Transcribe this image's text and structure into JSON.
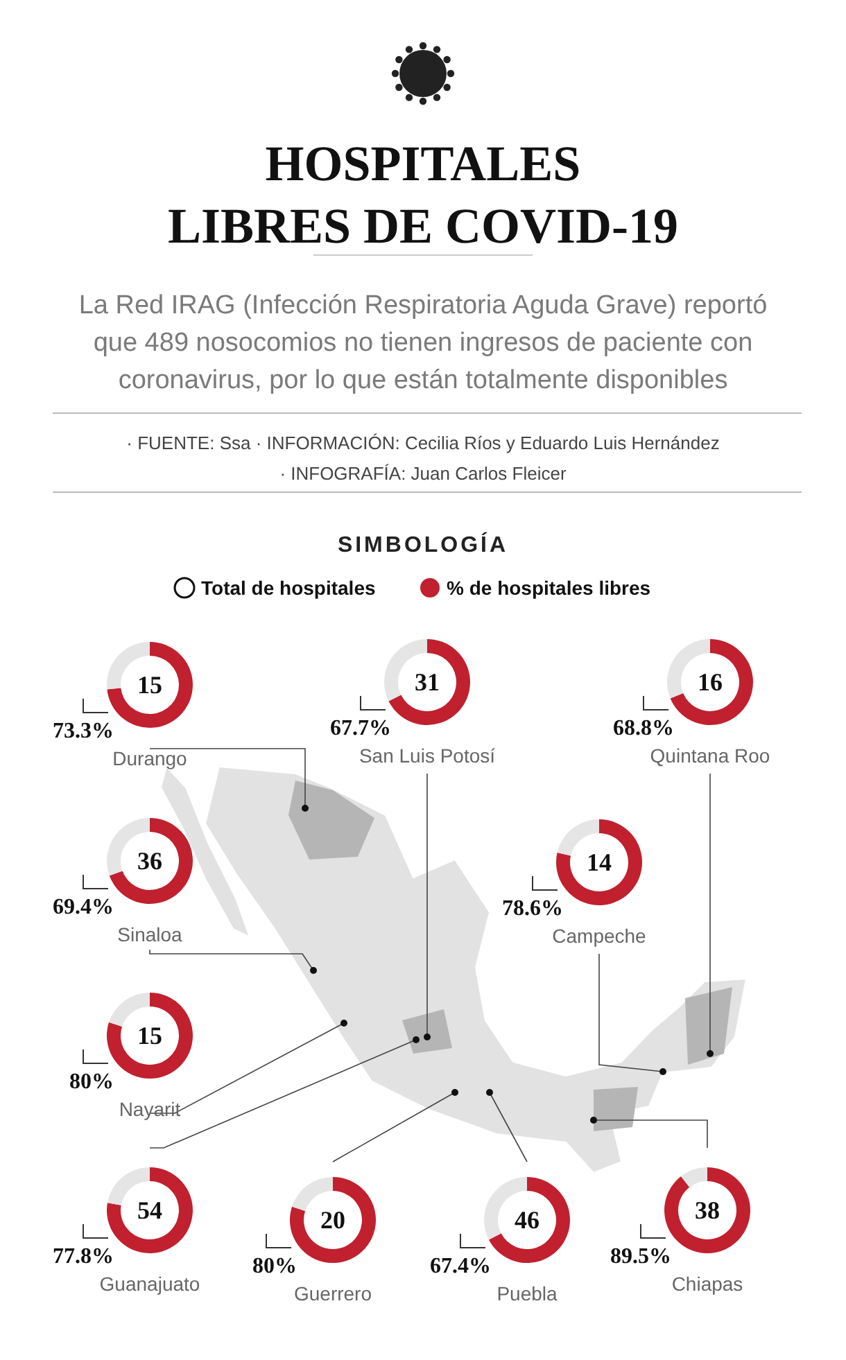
{
  "chart_data": [
    {
      "type": "other",
      "title": "HOSPITALES\nLIBRES DE COVID-19",
      "subtitle": "La Red IRAG (Infección Respiratoria Aguda Grave) reportó\nque 489 nosocomios no tienen ingresos de paciente con\ncoronavirus, por lo que están totalmente disponibles",
      "annotations": [
        "· FUENTE: Ssa · INFORMACIÓN: Cecilia Ríos y Eduardo Luis Hernández",
        "· INFOGRAFÍA: Juan Carlos Fleicer",
        "SIMBOLOGÍA",
        "Total de hospitales",
        "% de hospitales libres"
      ]
    },
    {
      "type": "donut",
      "title": "Durango",
      "categories": [
        null,
        null
      ],
      "values": [
        73.3,
        26.7
      ],
      "colors": [
        "#c1202f",
        "#e5e5e5"
      ],
      "value_labels": [
        "73.3%",
        null
      ],
      "annotations": [
        "15"
      ]
    },
    {
      "type": "donut",
      "title": "San Luis Potosí",
      "categories": [
        null,
        null
      ],
      "values": [
        67.7,
        32.3
      ],
      "colors": [
        "#c1202f",
        "#e5e5e5"
      ],
      "value_labels": [
        "67.7%",
        null
      ],
      "annotations": [
        "31"
      ]
    },
    {
      "type": "donut",
      "title": "Quintana Roo",
      "categories": [
        null,
        null
      ],
      "values": [
        68.8,
        31.2
      ],
      "colors": [
        "#c1202f",
        "#e5e5e5"
      ],
      "value_labels": [
        "68.8%",
        null
      ],
      "annotations": [
        "16"
      ]
    },
    {
      "type": "donut",
      "title": "Sinaloa",
      "categories": [
        null,
        null
      ],
      "values": [
        69.4,
        30.6
      ],
      "colors": [
        "#c1202f",
        "#e5e5e5"
      ],
      "value_labels": [
        "69.4%",
        null
      ],
      "annotations": [
        "36"
      ]
    },
    {
      "type": "donut",
      "title": "Campeche",
      "categories": [
        null,
        null
      ],
      "values": [
        78.6,
        21.4
      ],
      "colors": [
        "#c1202f",
        "#e5e5e5"
      ],
      "value_labels": [
        "78.6%",
        null
      ],
      "annotations": [
        "14"
      ]
    },
    {
      "type": "donut",
      "title": "Nayarit",
      "categories": [
        null,
        null
      ],
      "values": [
        80,
        20
      ],
      "colors": [
        "#c1202f",
        "#e5e5e5"
      ],
      "value_labels": [
        "80%",
        null
      ],
      "annotations": [
        "15"
      ]
    },
    {
      "type": "donut",
      "title": "Guanajuato",
      "categories": [
        null,
        null
      ],
      "values": [
        77.8,
        22.2
      ],
      "colors": [
        "#c1202f",
        "#e5e5e5"
      ],
      "value_labels": [
        "77.8%",
        null
      ],
      "annotations": [
        "54"
      ]
    },
    {
      "type": "donut",
      "title": "Guerrero",
      "categories": [
        null,
        null
      ],
      "values": [
        80,
        20
      ],
      "colors": [
        "#c1202f",
        "#e5e5e5"
      ],
      "value_labels": [
        "80%",
        null
      ],
      "annotations": [
        "20"
      ]
    },
    {
      "type": "donut",
      "title": "Puebla",
      "categories": [
        null,
        null
      ],
      "values": [
        67.4,
        32.6
      ],
      "colors": [
        "#c1202f",
        "#e5e5e5"
      ],
      "value_labels": [
        "67.4%",
        null
      ],
      "annotations": [
        "46"
      ]
    },
    {
      "type": "donut",
      "title": "Chiapas",
      "categories": [
        null,
        null
      ],
      "values": [
        89.5,
        10.5
      ],
      "colors": [
        "#c1202f",
        "#e5e5e5"
      ],
      "value_labels": [
        "89.5%",
        null
      ],
      "annotations": [
        "38"
      ]
    }
  ]
}
